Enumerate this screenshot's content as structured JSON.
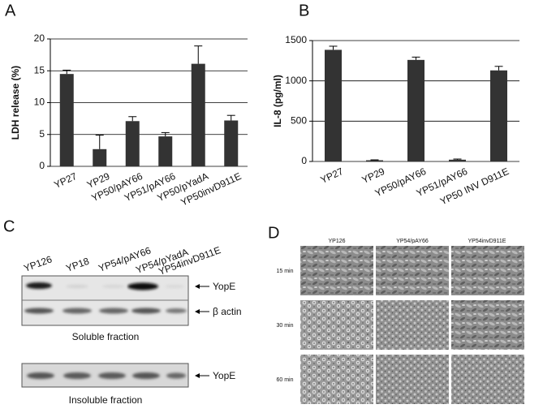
{
  "chart_data": [
    {
      "type": "bar",
      "label": "A",
      "y_label": "LDH release (%)",
      "categories": [
        "YP27",
        "YP29",
        "YP50/pAY66",
        "YP51/pAY66",
        "YP50/pYadA",
        "YP50invD911E"
      ],
      "values": [
        14.5,
        2.7,
        7.1,
        4.7,
        16.1,
        7.2
      ],
      "errors": [
        0.6,
        2.2,
        0.7,
        0.6,
        2.8,
        0.8
      ],
      "color": "#333333",
      "ylim": [
        0,
        20
      ],
      "yticks": [
        0,
        5,
        10,
        15,
        20
      ],
      "grid": true
    },
    {
      "type": "bar",
      "label": "B",
      "y_label": "IL-8 (pg/ml)",
      "categories": [
        "YP27",
        "YP29",
        "YP50/pAY66",
        "YP51/pAY66",
        "YP50 INV D911E"
      ],
      "values": [
        1385,
        15,
        1260,
        22,
        1130
      ],
      "errors": [
        45,
        5,
        35,
        8,
        50
      ],
      "color": "#333333",
      "ylim": [
        0,
        1500
      ],
      "yticks": [
        0,
        500,
        1000,
        1500
      ],
      "grid": true
    }
  ],
  "blot": {
    "label": "C",
    "lanes": [
      "YP126",
      "YP18",
      "YP54/pAY66",
      "YP54/pYadA",
      "YP54invD911E"
    ],
    "soluble": {
      "bands": [
        "YopE",
        "β actin"
      ],
      "caption": "Soluble fraction"
    },
    "insoluble": {
      "bands": [
        "YopE"
      ],
      "caption": "Insoluble fraction"
    }
  },
  "micrographs": {
    "label": "D",
    "columns": [
      "YP126",
      "YP54/pAY66",
      "YP54invD911E"
    ],
    "rows": [
      "15 min",
      "30 min",
      "60 min"
    ]
  }
}
